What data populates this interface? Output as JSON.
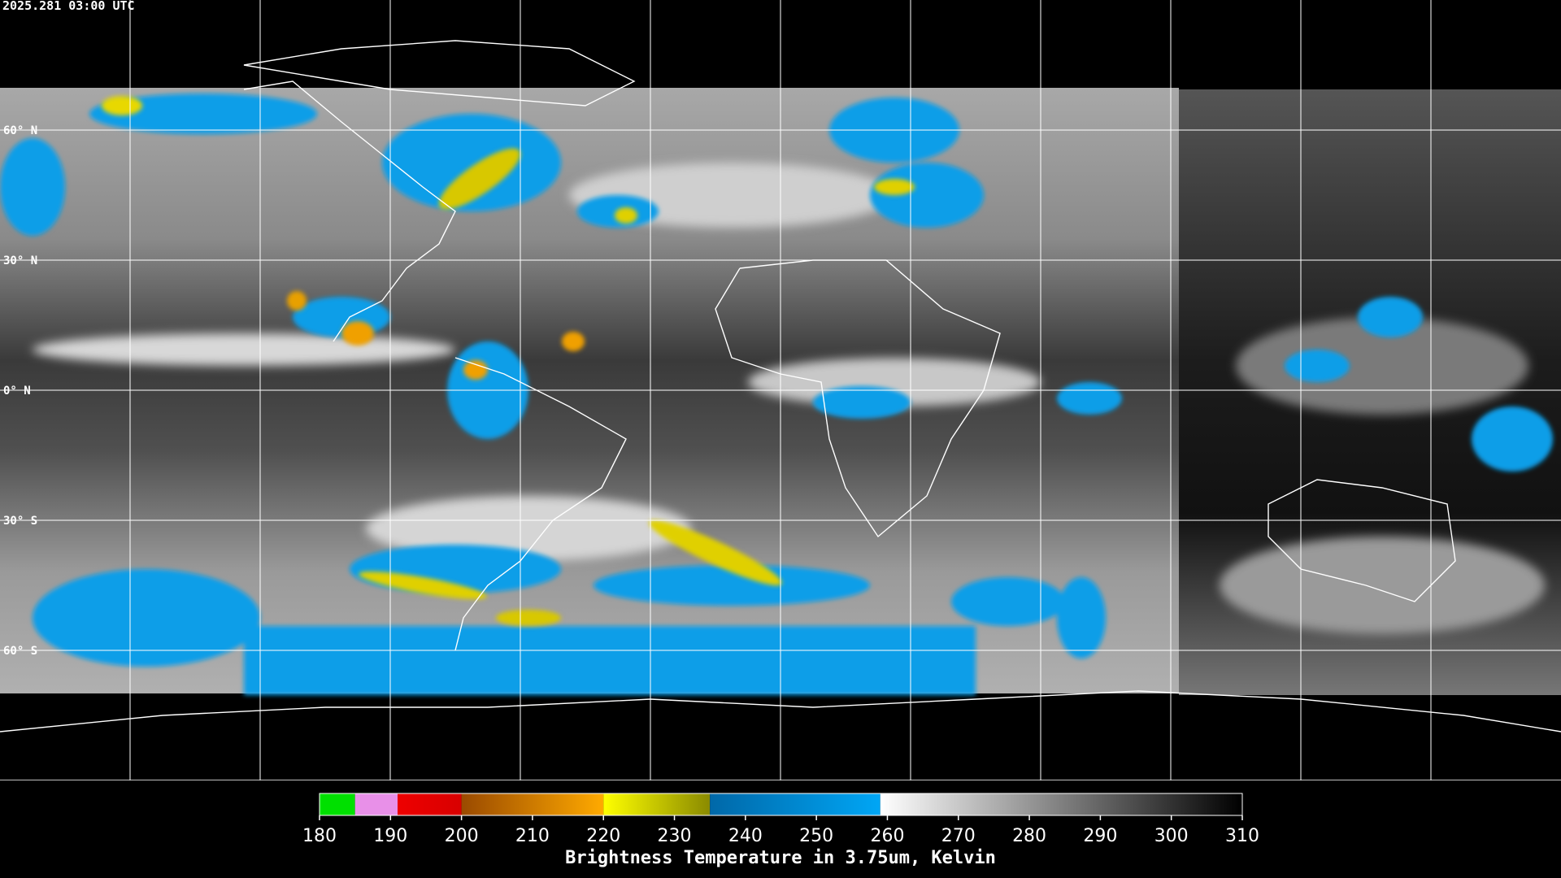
{
  "timestamp": "2025.281 03:00 UTC",
  "map": {
    "ylim": [
      -90,
      90
    ],
    "lat_lines": [
      {
        "value": 60,
        "label": "60° N"
      },
      {
        "value": 30,
        "label": "30° N"
      },
      {
        "value": 0,
        "label": "0° N"
      },
      {
        "value": -30,
        "label": "30° S"
      },
      {
        "value": -60,
        "label": "60° S"
      }
    ]
  },
  "colorbar": {
    "label": "Brightness Temperature in 3.75um, Kelvin",
    "range": [
      180,
      310
    ],
    "ticks": [
      180,
      190,
      200,
      210,
      220,
      230,
      240,
      250,
      260,
      270,
      280,
      290,
      300,
      310
    ],
    "segments": [
      {
        "from": 180,
        "to": 185,
        "colors": [
          "#00e000",
          "#00e000"
        ]
      },
      {
        "from": 185,
        "to": 191,
        "colors": [
          "#e890e8",
          "#e890e8"
        ]
      },
      {
        "from": 191,
        "to": 200,
        "colors": [
          "#ee0000",
          "#d80000"
        ]
      },
      {
        "from": 200,
        "to": 220,
        "colors": [
          "#9a4a00",
          "#ffaa00"
        ]
      },
      {
        "from": 220,
        "to": 235,
        "colors": [
          "#ffff00",
          "#8a8a00"
        ]
      },
      {
        "from": 235,
        "to": 259,
        "colors": [
          "#0068a8",
          "#00a6f5"
        ]
      },
      {
        "from": 259,
        "to": 310,
        "colors": [
          "#ffffff",
          "#000000"
        ]
      }
    ]
  }
}
